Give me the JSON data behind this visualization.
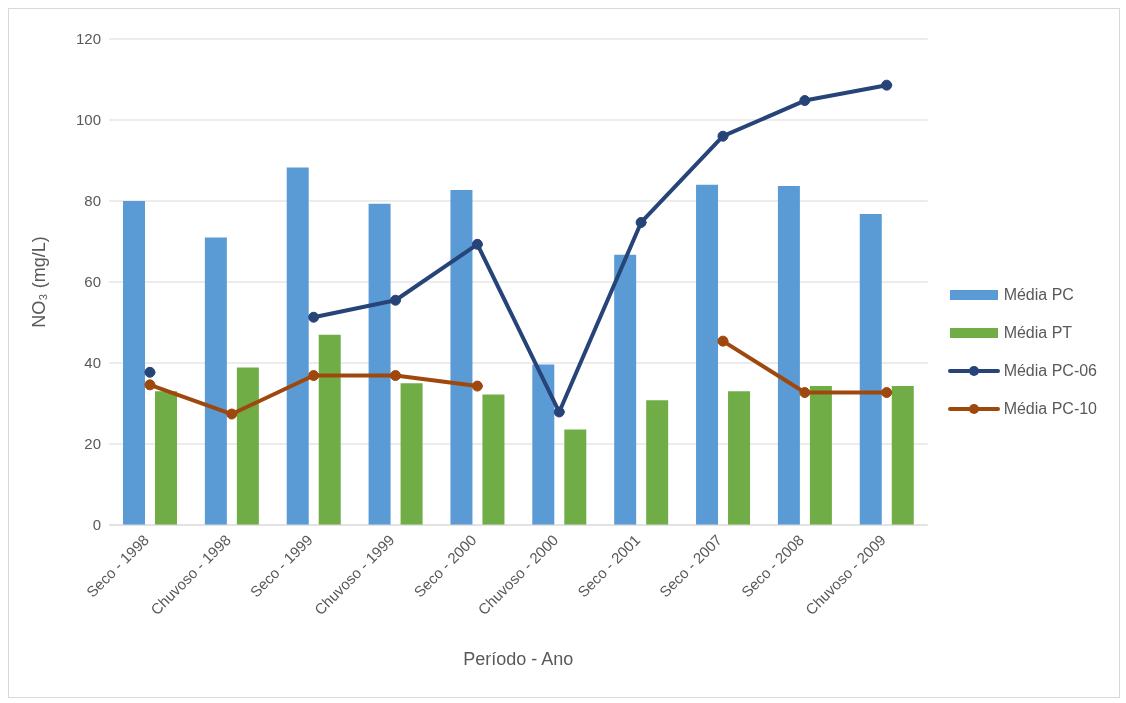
{
  "chart_data": {
    "type": "bar",
    "xlabel": "Período - Ano",
    "ylabel": "NO₃ (mg/L)",
    "categories": [
      "Seco - 1998",
      "Chuvoso - 1998",
      "Seco - 1999",
      "Chuvoso - 1999",
      "Seco - 2000",
      "Chuvoso - 2000",
      "Seco - 2001",
      "Seco - 2007",
      "Seco - 2008",
      "Chuvoso - 2009"
    ],
    "series": [
      {
        "name": "Média PC",
        "color": "#5b9bd5",
        "values": [
          80,
          71,
          88.3,
          79.3,
          82.7,
          39.6,
          66.7,
          84,
          83.7,
          76.8
        ]
      },
      {
        "name": "Média PT",
        "color": "#70ad47",
        "values": [
          33,
          38.9,
          47,
          35,
          32.2,
          23.6,
          30.8,
          33,
          34.3,
          34.3
        ]
      },
      {
        "name": "Média PC-06",
        "type": "line",
        "color": "#264478",
        "values": [
          37.7,
          null,
          51.3,
          55.5,
          69.3,
          27.9,
          74.7,
          96,
          104.8,
          108.6
        ]
      },
      {
        "name": "Média PC-10",
        "type": "line",
        "color": "#9e480e",
        "values": [
          34.6,
          27.4,
          36.9,
          36.9,
          34.3,
          null,
          null,
          45.4,
          32.7,
          32.7
        ]
      }
    ],
    "ylim": [
      0,
      120
    ],
    "yticks": [
      0,
      20,
      40,
      60,
      80,
      100,
      120
    ],
    "grid": "y",
    "legend": "right",
    "marker": "circle",
    "line_style": "solid"
  }
}
